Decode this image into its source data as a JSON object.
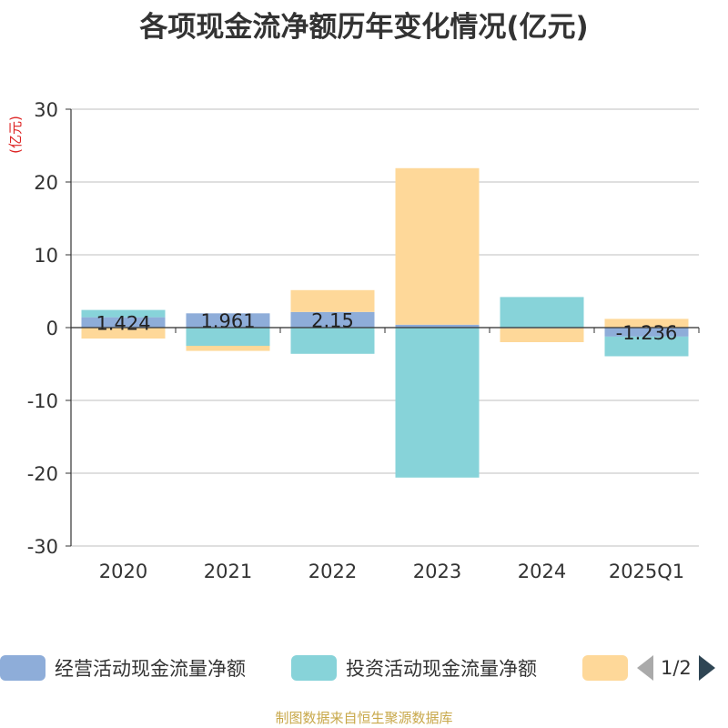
{
  "chart_data": {
    "type": "bar",
    "stacked": true,
    "title": "各项现金流净额历年变化情况(亿元)",
    "ylabel": "(亿元)",
    "ylim": [
      -30,
      30
    ],
    "yticks": [
      30,
      20,
      10,
      0,
      -10,
      -20,
      -30
    ],
    "categories": [
      "2020",
      "2021",
      "2022",
      "2023",
      "2024",
      "2025Q1"
    ],
    "series": [
      {
        "name": "经营活动现金流量净额",
        "color": "#8eadd9",
        "values": [
          1.424,
          1.961,
          2.15,
          0.4,
          -0.1,
          -1.236
        ]
      },
      {
        "name": "投资活动现金流量净额",
        "color": "#87d3d9",
        "values": [
          1.0,
          -2.5,
          -3.6,
          -20.6,
          4.2,
          -2.7
        ]
      },
      {
        "name": "",
        "color": "#fed899",
        "values": [
          -1.5,
          -0.7,
          3.0,
          21.5,
          -1.9,
          1.2
        ]
      }
    ],
    "data_labels": [
      "1.424",
      "1.961",
      "2.15",
      "",
      "",
      "-1.236"
    ],
    "legend_position": "bottom",
    "grid": true
  },
  "legend": {
    "items": [
      "经营活动现金流量净额",
      "投资活动现金流量净额",
      ""
    ],
    "pager_text": "1/2"
  },
  "footer": {
    "source": "制图数据来自恒生聚源数据库"
  }
}
